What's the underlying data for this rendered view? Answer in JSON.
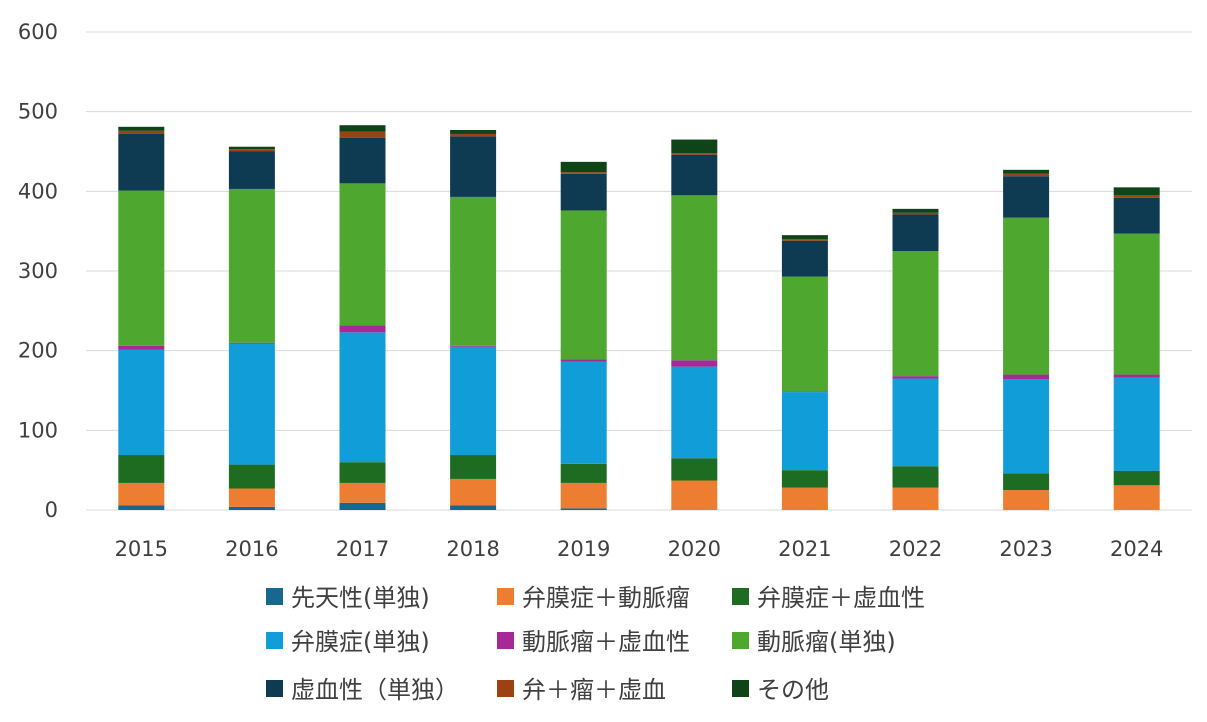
{
  "chart_data": {
    "type": "bar",
    "stacked": true,
    "categories": [
      "2015",
      "2016",
      "2017",
      "2018",
      "2019",
      "2020",
      "2021",
      "2022",
      "2023",
      "2024"
    ],
    "ylim": [
      0,
      600
    ],
    "yticks": [
      0,
      100,
      200,
      300,
      400,
      500,
      600
    ],
    "grid": true,
    "legend_position": "bottom",
    "title": "",
    "xlabel": "",
    "ylabel": "",
    "series": [
      {
        "name": "先天性(単独)",
        "color": "#17688f",
        "values": [
          6,
          4,
          9,
          6,
          2,
          0,
          0,
          0,
          0,
          0
        ]
      },
      {
        "name": "弁膜症＋動脈瘤",
        "color": "#ed7d31",
        "values": [
          28,
          23,
          25,
          33,
          32,
          37,
          28,
          28,
          25,
          31
        ]
      },
      {
        "name": "弁膜症＋虚血性",
        "color": "#1e6b22",
        "values": [
          35,
          30,
          26,
          30,
          24,
          28,
          22,
          27,
          21,
          18
        ]
      },
      {
        "name": "弁膜症(単独)",
        "color": "#119ed8",
        "values": [
          132,
          152,
          163,
          136,
          128,
          115,
          98,
          110,
          118,
          117
        ]
      },
      {
        "name": "動脈瘤＋虚血性",
        "color": "#a52a96",
        "values": [
          5,
          1,
          9,
          1,
          3,
          8,
          1,
          3,
          6,
          4
        ]
      },
      {
        "name": "動脈瘤(単独)",
        "color": "#4ea72e",
        "values": [
          195,
          193,
          178,
          187,
          187,
          207,
          144,
          157,
          197,
          177
        ]
      },
      {
        "name": "虚血性（単独）",
        "color": "#0e3a52",
        "values": [
          71,
          47,
          57,
          76,
          46,
          51,
          45,
          46,
          52,
          45
        ]
      },
      {
        "name": "弁＋瘤＋虚血",
        "color": "#9c4212",
        "values": [
          4,
          3,
          8,
          3,
          2,
          2,
          2,
          2,
          3,
          3
        ]
      },
      {
        "name": "その他",
        "color": "#0f4418",
        "values": [
          5,
          3,
          8,
          5,
          13,
          17,
          5,
          5,
          5,
          10
        ]
      }
    ]
  }
}
